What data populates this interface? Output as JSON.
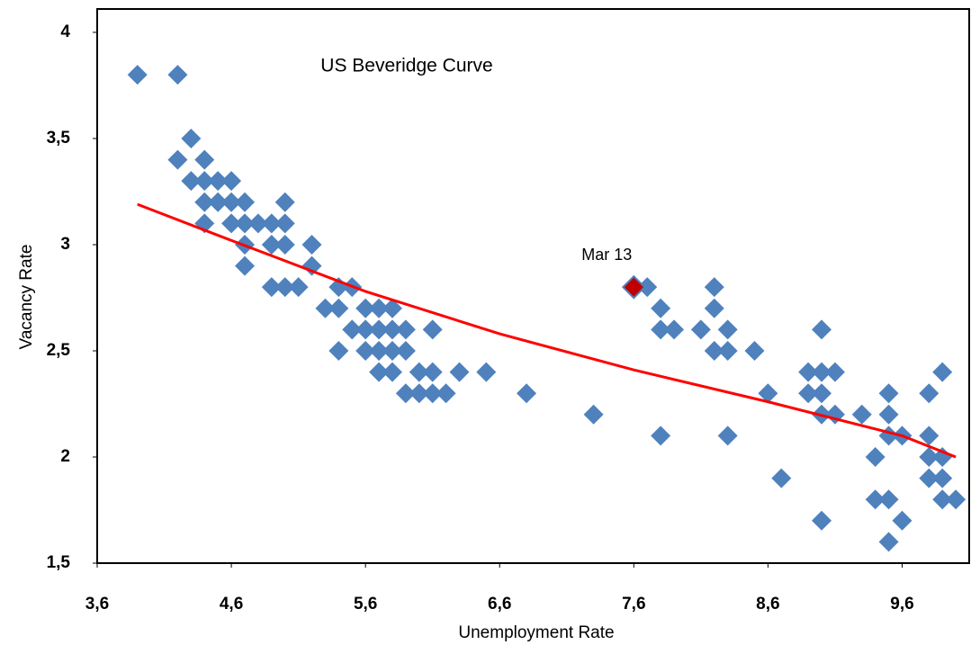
{
  "chart_data": {
    "type": "scatter",
    "title": "US Beveridge Curve",
    "x_label": "Unemployment Rate",
    "y_label": "Vacancy Rate",
    "xlim": [
      3.6,
      10.1
    ],
    "ylim": [
      1.5,
      4.11
    ],
    "xticks": [
      {
        "value": 3.6,
        "label": "3,6"
      },
      {
        "value": 4.6,
        "label": "4,6"
      },
      {
        "value": 5.6,
        "label": "5,6"
      },
      {
        "value": 6.6,
        "label": "6,6"
      },
      {
        "value": 7.6,
        "label": "7,6"
      },
      {
        "value": 8.6,
        "label": "8,6"
      },
      {
        "value": 9.6,
        "label": "9,6"
      }
    ],
    "yticks": [
      {
        "value": 1.5,
        "label": "1,5"
      },
      2,
      {
        "value": 2.5,
        "label": "2,5"
      },
      3,
      {
        "value": 3.5,
        "label": "3,5"
      },
      4
    ],
    "series": [
      {
        "color": "#4f81bd",
        "x": [
          3.9,
          4.2,
          4.3,
          4.2,
          4.4,
          4.3,
          4.4,
          4.5,
          4.6,
          4.4,
          4.5,
          4.6,
          4.7,
          5.0,
          4.4,
          4.6,
          4.7,
          4.8,
          4.9,
          5.0,
          4.7,
          4.9,
          5.0,
          5.2,
          4.7,
          5.2,
          4.9,
          5.0,
          5.1,
          5.4,
          5.5,
          5.3,
          5.4,
          5.6,
          5.7,
          5.8,
          5.5,
          5.6,
          5.7,
          5.8,
          5.9,
          6.1,
          5.4,
          5.6,
          5.7,
          5.8,
          5.9,
          5.7,
          5.8,
          6.0,
          6.1,
          6.3,
          6.5,
          5.9,
          6.0,
          6.1,
          6.2,
          6.8,
          7.3,
          7.7,
          7.8,
          7.8,
          7.9,
          8.1,
          8.2,
          8.2,
          8.2,
          8.3,
          8.3,
          8.5,
          8.6,
          7.8,
          8.3,
          8.7,
          8.9,
          9.0,
          9.0,
          9.1,
          8.9,
          9.0,
          9.0,
          9.1,
          9.3,
          9.0,
          9.4,
          9.4,
          9.5,
          9.5,
          9.5,
          9.6,
          9.5,
          9.6,
          9.5,
          9.8,
          9.8,
          9.8,
          9.8,
          9.9,
          9.9,
          9.9,
          9.9,
          10.0
        ],
        "y": [
          3.8,
          3.8,
          3.5,
          3.4,
          3.4,
          3.3,
          3.3,
          3.3,
          3.3,
          3.2,
          3.2,
          3.2,
          3.2,
          3.2,
          3.1,
          3.1,
          3.1,
          3.1,
          3.1,
          3.1,
          3.0,
          3.0,
          3.0,
          3.0,
          2.9,
          2.9,
          2.8,
          2.8,
          2.8,
          2.8,
          2.8,
          2.7,
          2.7,
          2.7,
          2.7,
          2.7,
          2.6,
          2.6,
          2.6,
          2.6,
          2.6,
          2.6,
          2.5,
          2.5,
          2.5,
          2.5,
          2.5,
          2.4,
          2.4,
          2.4,
          2.4,
          2.4,
          2.4,
          2.3,
          2.3,
          2.3,
          2.3,
          2.3,
          2.2,
          2.8,
          2.7,
          2.6,
          2.6,
          2.6,
          2.8,
          2.7,
          2.5,
          2.5,
          2.6,
          2.5,
          2.3,
          2.1,
          2.1,
          1.9,
          2.4,
          2.6,
          2.4,
          2.4,
          2.3,
          2.3,
          2.2,
          2.2,
          2.2,
          1.7,
          2.0,
          1.8,
          2.3,
          2.2,
          2.1,
          2.1,
          1.8,
          1.7,
          1.6,
          2.3,
          2.1,
          2.0,
          1.9,
          2.0,
          1.9,
          1.8,
          2.4,
          1.8
        ]
      }
    ],
    "highlight": {
      "label": "Mar 13",
      "x": 7.6,
      "y": 2.8,
      "color": "#c00000"
    },
    "trendline": {
      "color": "#ff0000",
      "x": [
        3.9,
        4.6,
        5.6,
        6.6,
        7.6,
        8.6,
        9.6,
        10.0
      ],
      "y": [
        3.19,
        3.02,
        2.78,
        2.58,
        2.41,
        2.26,
        2.1,
        2.0
      ]
    }
  }
}
